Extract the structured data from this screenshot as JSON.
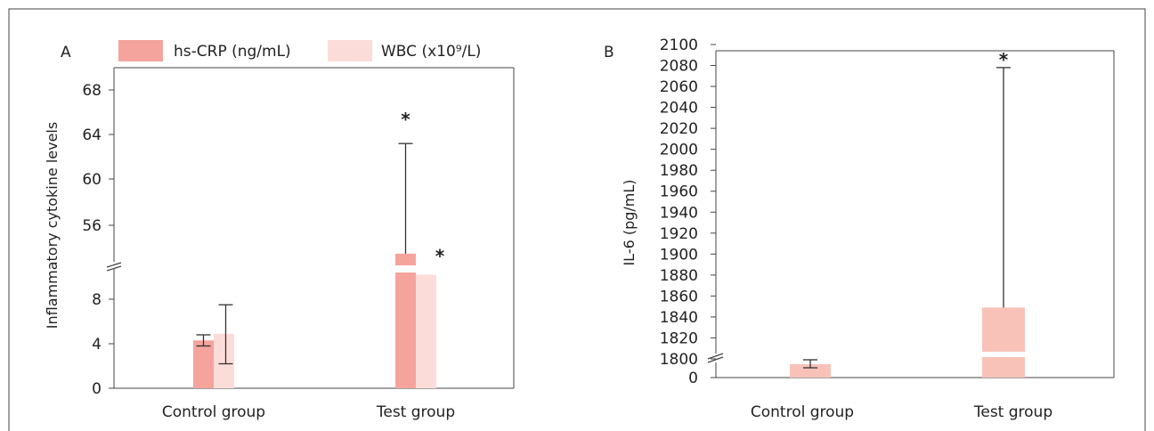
{
  "chart_data": [
    {
      "type": "bar",
      "panel_label": "A",
      "title": "",
      "xlabel": "",
      "ylabel": "Inflammatory cytokine levels",
      "categories": [
        "Control group",
        "Test group"
      ],
      "axis_break": true,
      "lower_segment": {
        "range": [
          0,
          12
        ],
        "ticks": [
          "0",
          "4",
          "8"
        ]
      },
      "upper_segment": {
        "range": [
          52,
          70
        ],
        "ticks": [
          "56",
          "60",
          "64",
          "68"
        ]
      },
      "legend_position": "top",
      "series": [
        {
          "name": "hs-CRP (ng/mL)",
          "color": "#f4a49d",
          "values": [
            4.3,
            53.5
          ],
          "error_low": [
            3.8,
            53.5
          ],
          "error_high": [
            4.8,
            63.2
          ],
          "significance": [
            "",
            "*"
          ]
        },
        {
          "name": "WBC (x10⁹/L)",
          "color": "#fcdcd8",
          "values": [
            4.9,
            10.2
          ],
          "error_low": [
            2.2,
            10.2
          ],
          "error_high": [
            7.5,
            10.2
          ],
          "significance": [
            "",
            "*"
          ]
        }
      ],
      "grid": false
    },
    {
      "type": "bar",
      "panel_label": "B",
      "title": "",
      "xlabel": "",
      "ylabel": "IL-6 (pg/mL)",
      "categories": [
        "Control group",
        "Test group"
      ],
      "axis_break": true,
      "lower_segment": {
        "range": [
          0,
          1
        ],
        "ticks": [
          "0"
        ]
      },
      "upper_segment": {
        "range": [
          1800,
          2100
        ],
        "ticks": [
          "1800",
          "1820",
          "1840",
          "1860",
          "1880",
          "1900",
          "1920",
          "1940",
          "1960",
          "1980",
          "2000",
          "2020",
          "2040",
          "2060",
          "2080",
          "2100"
        ]
      },
      "series": [
        {
          "name": "IL-6",
          "color": "#f8c2b9",
          "values": [
            1801,
            1849
          ],
          "error_low": [
            1797,
            1849
          ],
          "error_high": [
            1803,
            2078
          ],
          "significance": [
            "",
            "*"
          ]
        }
      ],
      "grid": false
    }
  ]
}
